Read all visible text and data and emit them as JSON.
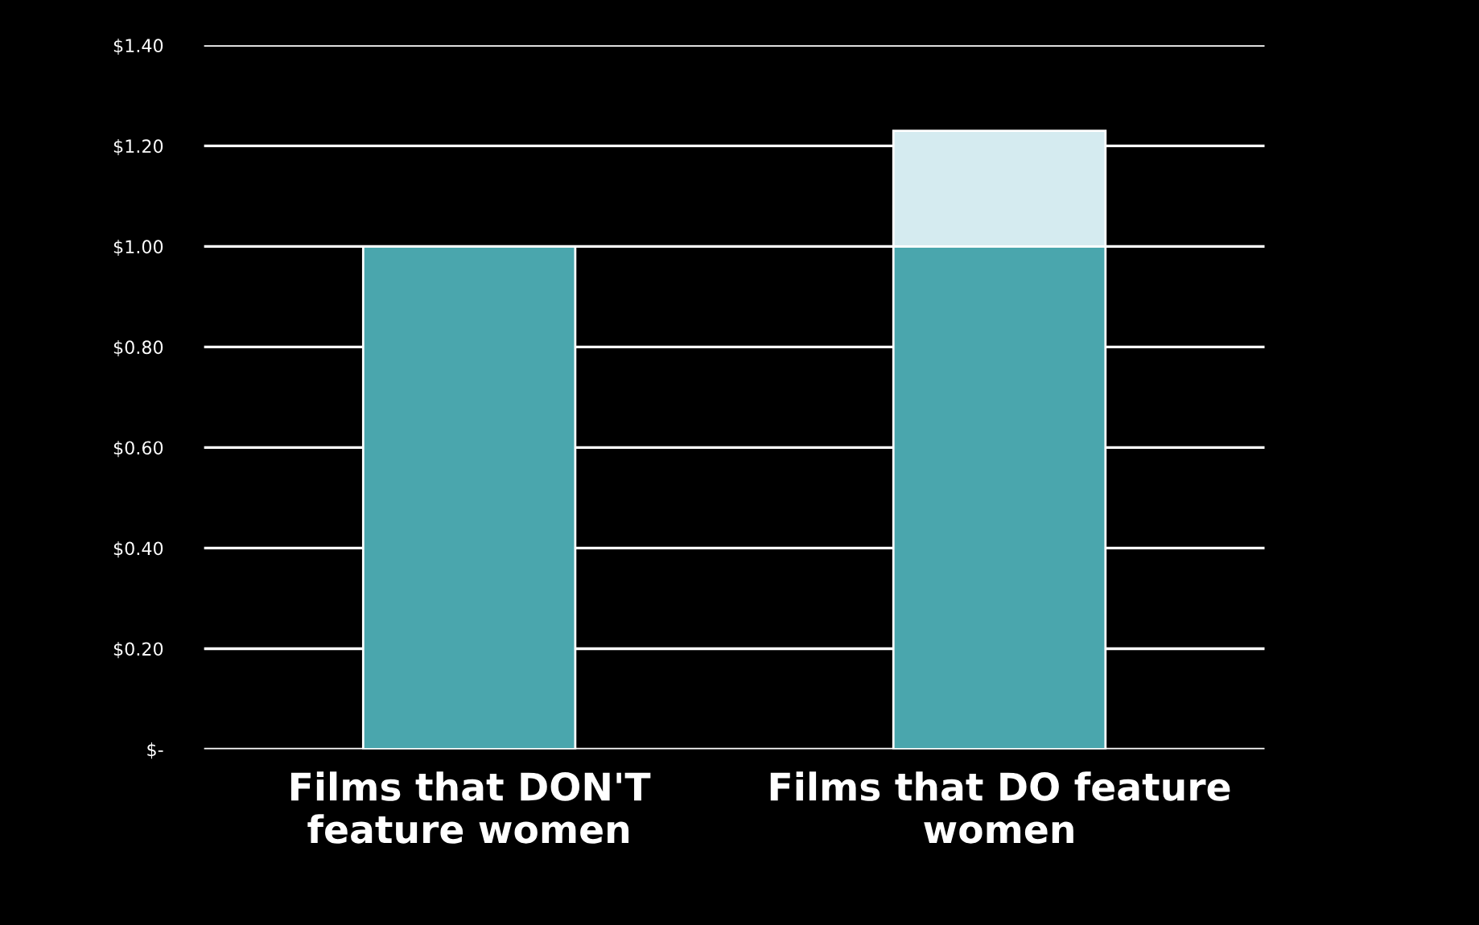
{
  "chart_data": {
    "type": "bar",
    "stacked": true,
    "categories": [
      "Films that DON'T\nfeature women",
      "Films that DO feature\nwomen"
    ],
    "series": [
      {
        "color": "#4aa6ad",
        "values": [
          1.0,
          1.0
        ]
      },
      {
        "color": "#d5ebf0",
        "values": [
          null,
          0.23
        ]
      }
    ],
    "ylim": [
      0,
      1.4
    ],
    "yticks": [
      {
        "value": 0,
        "label": "$-"
      },
      {
        "value": 0.2,
        "label": "$0.20"
      },
      {
        "value": 0.4,
        "label": "$0.40"
      },
      {
        "value": 0.6,
        "label": "$0.60"
      },
      {
        "value": 0.8,
        "label": "$0.80"
      },
      {
        "value": 1.0,
        "label": "$1.00"
      },
      {
        "value": 1.2,
        "label": "$1.20"
      },
      {
        "value": 1.4,
        "label": "$1.40"
      }
    ],
    "grid": "y"
  }
}
